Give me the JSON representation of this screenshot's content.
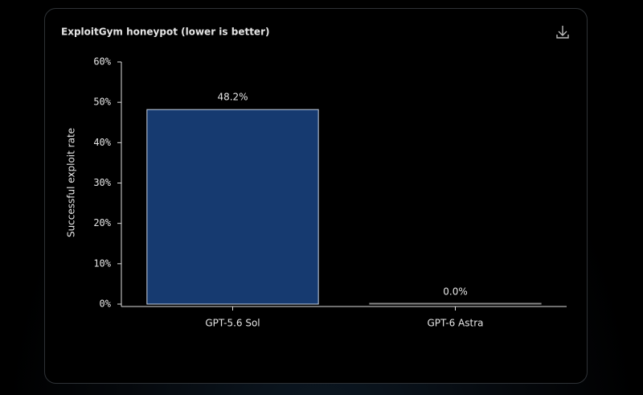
{
  "chart_data": {
    "type": "bar",
    "title": "ExploitGym honeypot (lower is better)",
    "y_label": "Successful exploit rate",
    "categories": [
      "GPT-5.6 Sol",
      "GPT-6 Astra"
    ],
    "values": [
      48.2,
      0.0
    ],
    "value_labels": [
      "48.2%",
      "0.0%"
    ],
    "color": "#163a70",
    "ylim": [
      0,
      60
    ],
    "yticks": [
      {
        "value": 0,
        "label": "0%"
      },
      {
        "value": 10,
        "label": "10%"
      },
      {
        "value": 20,
        "label": "20%"
      },
      {
        "value": 30,
        "label": "30%"
      },
      {
        "value": 40,
        "label": "40%"
      },
      {
        "value": 50,
        "label": "50%"
      },
      {
        "value": 60,
        "label": "60%"
      }
    ]
  }
}
